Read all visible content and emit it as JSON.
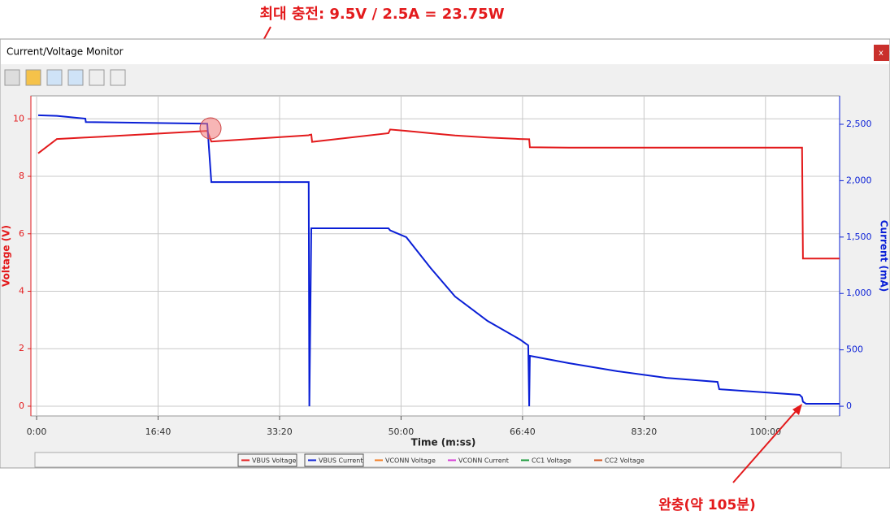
{
  "window": {
    "title": "Current/Voltage Monitor",
    "close": "x"
  },
  "annotations": [
    {
      "text": "최대 충전: 9.5V / 2.5A = 23.75W"
    },
    {
      "text": "완충(약 105분)"
    }
  ],
  "chart_data": {
    "type": "line",
    "xlabel": "Time (m:ss)",
    "ylabel": "Voltage (V)",
    "y2label": "Current (mA)",
    "xlim": [
      -47,
      6610
    ],
    "ylim": [
      -0.34,
      10.8
    ],
    "y2lim": [
      -86,
      2752
    ],
    "xticks": [
      {
        "value": 0,
        "label": "0:00"
      },
      {
        "value": 1000,
        "label": "16:40"
      },
      {
        "value": 2000,
        "label": "33:20"
      },
      {
        "value": 3000,
        "label": "50:00"
      },
      {
        "value": 4000,
        "label": "66:40"
      },
      {
        "value": 5000,
        "label": "83:20"
      },
      {
        "value": 6000,
        "label": "100:00"
      }
    ],
    "yticks": [
      0,
      2,
      4,
      6,
      8,
      10
    ],
    "y2ticks": [
      0,
      500,
      {
        "value": 1000,
        "label": "1,000"
      },
      {
        "value": 1500,
        "label": "1,500"
      },
      {
        "value": 2000,
        "label": "2,000"
      },
      {
        "value": 2500,
        "label": "2,500"
      }
    ],
    "grid": true,
    "x": [
      13,
      167,
      401,
      405,
      1405,
      1438,
      2240,
      2245,
      2261,
      2268,
      2896,
      2910,
      3043,
      3244,
      3445,
      3712,
      3980,
      4047,
      4055,
      4060,
      4381,
      4783,
      5184,
      5605,
      5619,
      6281,
      6301,
      6308,
      6334,
      6609
    ],
    "series": [
      {
        "name": "VBUS Voltage",
        "color": "#e31a1c",
        "values": [
          8.8,
          9.3,
          9.35,
          9.35,
          9.58,
          9.21,
          9.43,
          9.44,
          9.45,
          9.2,
          9.5,
          9.63,
          9.58,
          9.5,
          9.42,
          9.35,
          9.3,
          9.29,
          9.29,
          9.01,
          9.0,
          9.0,
          9.0,
          9.0,
          9.0,
          9.0,
          9.0,
          5.14,
          5.14,
          5.14
        ]
      },
      {
        "name": "VBUS Current",
        "color": "#0a1fd6",
        "axis": "y2",
        "values": [
          2580,
          2575,
          2550,
          2520,
          2505,
          1988,
          1988,
          0,
          1578,
          1578,
          1578,
          1560,
          1499,
          1225,
          973,
          757,
          591,
          540,
          0,
          447,
          382,
          310,
          252,
          216,
          151,
          101,
          80,
          40,
          22,
          22
        ]
      },
      {
        "name": "VCONN Voltage",
        "color": "#f47b20",
        "values": [
          null,
          null,
          null,
          null,
          null,
          null,
          null,
          null,
          null,
          null,
          null,
          null,
          null,
          null,
          null,
          null,
          null,
          null,
          null,
          null,
          null,
          null,
          null,
          null,
          null,
          null,
          null,
          null,
          null,
          null
        ]
      },
      {
        "name": "VCONN Current",
        "color": "#d63ad6",
        "values": [
          null,
          null,
          null,
          null,
          null,
          null,
          null,
          null,
          null,
          null,
          null,
          null,
          null,
          null,
          null,
          null,
          null,
          null,
          null,
          null,
          null,
          null,
          null,
          null,
          null,
          null,
          null,
          null,
          null,
          null
        ]
      },
      {
        "name": "CC1 Voltage",
        "color": "#1a9a3a",
        "values": [
          null,
          null,
          null,
          null,
          null,
          null,
          null,
          null,
          null,
          null,
          null,
          null,
          null,
          null,
          null,
          null,
          null,
          null,
          null,
          null,
          null,
          null,
          null,
          null,
          null,
          null,
          null,
          null,
          null,
          null
        ]
      },
      {
        "name": "CC2 Voltage",
        "color": "#d2541e",
        "values": [
          null,
          null,
          null,
          null,
          null,
          null,
          null,
          null,
          null,
          null,
          null,
          null,
          null,
          null,
          null,
          null,
          null,
          null,
          null,
          null,
          null,
          null,
          null,
          null,
          null,
          null,
          null,
          null,
          null,
          null
        ]
      }
    ]
  }
}
